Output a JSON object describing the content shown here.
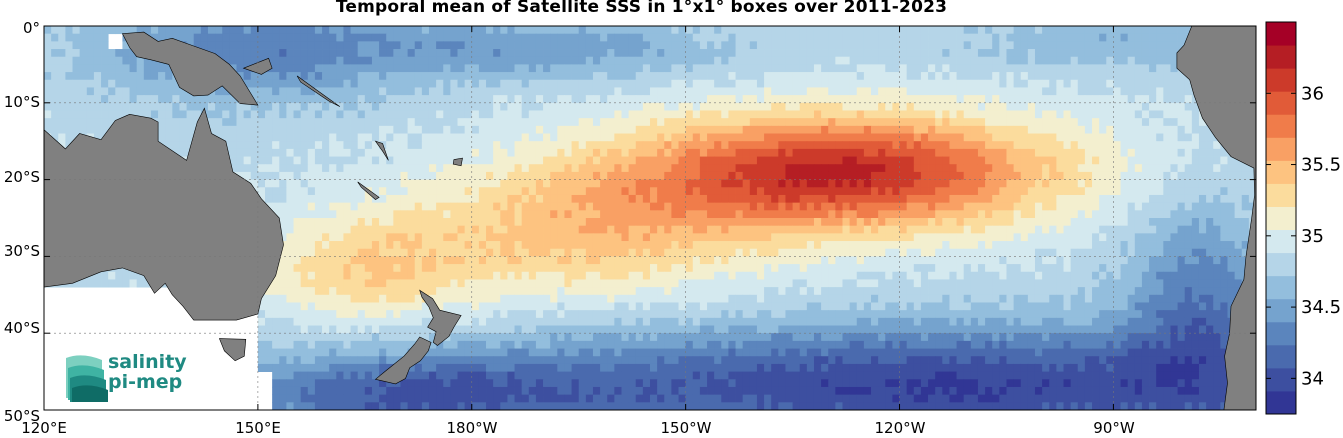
{
  "title": "Temporal mean of Satellite SSS in 1°x1° boxes over 2011-2023",
  "map": {
    "lon_ticks": [
      "120°E",
      "150°E",
      "180°W",
      "150°W",
      "120°W",
      "90°W"
    ],
    "lat_ticks": [
      "0°",
      "10°S",
      "20°S",
      "30°S",
      "40°S",
      "50°S"
    ],
    "lon_range": [
      120,
      290
    ],
    "lat_range": [
      0,
      -50
    ],
    "land_color": "#808080",
    "grid": true
  },
  "colorbar": {
    "ticks": [
      "34",
      "34.5",
      "35",
      "35.5",
      "36"
    ],
    "tick_values": [
      34,
      34.5,
      35,
      35.5,
      36
    ],
    "range": [
      33.75,
      36.5
    ],
    "colors": [
      "#313695",
      "#3d4fa0",
      "#4a6aae",
      "#5b85bd",
      "#75a3ce",
      "#93bedd",
      "#b5d5e8",
      "#d4e9ef",
      "#f3efcf",
      "#fbdc9d",
      "#fdc380",
      "#f9a064",
      "#f07c4a",
      "#e15b38",
      "#cc3a2a",
      "#b51e24",
      "#a50026"
    ]
  },
  "logo": {
    "line1": "salinity",
    "line2": "pi-mep"
  }
}
